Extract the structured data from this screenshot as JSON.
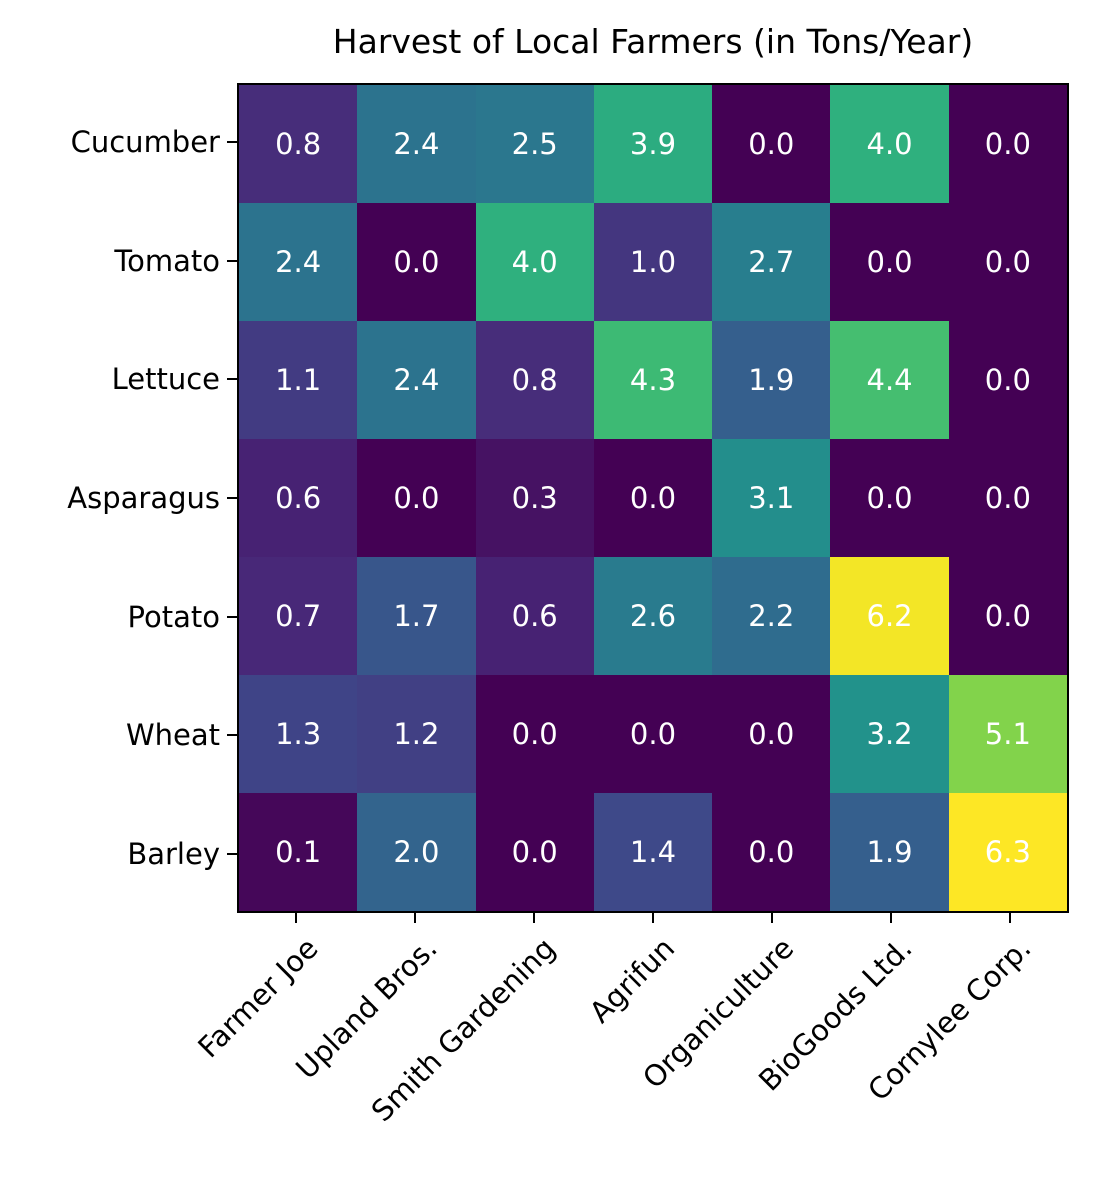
{
  "chart_data": {
    "type": "heatmap",
    "title": "Harvest of Local Farmers (in Tons/Year)",
    "rows": [
      "Cucumber",
      "Tomato",
      "Lettuce",
      "Asparagus",
      "Potato",
      "Wheat",
      "Barley"
    ],
    "columns": [
      "Farmer Joe",
      "Upland Bros.",
      "Smith Gardening",
      "Agrifun",
      "Organiculture",
      "BioGoods Ltd.",
      "Cornylee Corp."
    ],
    "values": [
      [
        0.8,
        2.4,
        2.5,
        3.9,
        0.0,
        4.0,
        0.0
      ],
      [
        2.4,
        0.0,
        4.0,
        1.0,
        2.7,
        0.0,
        0.0
      ],
      [
        1.1,
        2.4,
        0.8,
        4.3,
        1.9,
        4.4,
        0.0
      ],
      [
        0.6,
        0.0,
        0.3,
        0.0,
        3.1,
        0.0,
        0.0
      ],
      [
        0.7,
        1.7,
        0.6,
        2.6,
        2.2,
        6.2,
        0.0
      ],
      [
        1.3,
        1.2,
        0.0,
        0.0,
        0.0,
        3.2,
        5.1
      ],
      [
        0.1,
        2.0,
        0.0,
        1.4,
        0.0,
        1.9,
        6.3
      ]
    ],
    "vmin": 0.0,
    "vmax": 6.3,
    "colormap": "viridis",
    "cell_text_color": "#ffffff",
    "colormap_stops": [
      "#440154",
      "#482878",
      "#3e4989",
      "#31688e",
      "#26828e",
      "#1f9e89",
      "#35b779",
      "#6ece58",
      "#b5de2b",
      "#fde725"
    ],
    "axis_color": "#000000",
    "x_label_rotation_deg": 45,
    "legend": "none",
    "grid": "off"
  }
}
